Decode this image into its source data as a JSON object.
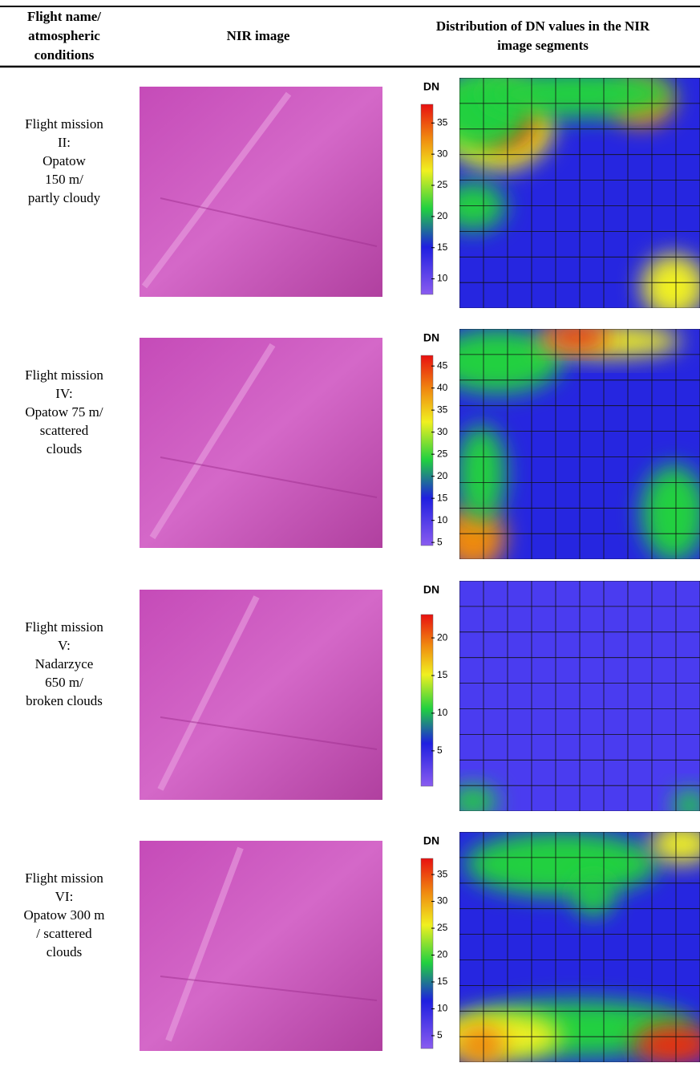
{
  "table": {
    "headers": [
      [
        "Flight name/",
        "atmospheric",
        "conditions"
      ],
      [
        "NIR image"
      ],
      [
        "Distribution of DN values in the NIR",
        "image segments"
      ]
    ],
    "rows": [
      {
        "conditions": [
          "Flight mission",
          "II:",
          "Opatow",
          "150 m/",
          "partly cloudy"
        ],
        "colorbar_label": "DN",
        "colorbar_lim": [
          7.5,
          38
        ],
        "colorbar_ticks": [
          35,
          30,
          25,
          20,
          15,
          10
        ]
      },
      {
        "conditions": [
          "Flight mission",
          "IV:",
          "Opatow 75 m/",
          "scattered",
          "clouds"
        ],
        "colorbar_label": "DN",
        "colorbar_lim": [
          4.3,
          47.4
        ],
        "colorbar_ticks": [
          45,
          40,
          35,
          30,
          25,
          20,
          15,
          10,
          5
        ]
      },
      {
        "conditions": [
          "Flight mission",
          "V:",
          "Nadarzyce",
          "650 m/",
          "broken clouds"
        ],
        "colorbar_label": "DN",
        "colorbar_lim": [
          0.3,
          23.1
        ],
        "colorbar_ticks": [
          20,
          15,
          10,
          5
        ]
      },
      {
        "conditions": [
          "Flight mission",
          "VI:",
          "Opatow 300 m",
          "/ scattered",
          "clouds"
        ],
        "colorbar_label": "DN",
        "colorbar_lim": [
          2.6,
          38
        ],
        "colorbar_ticks": [
          35,
          30,
          25,
          20,
          15,
          10,
          5
        ]
      }
    ]
  }
}
